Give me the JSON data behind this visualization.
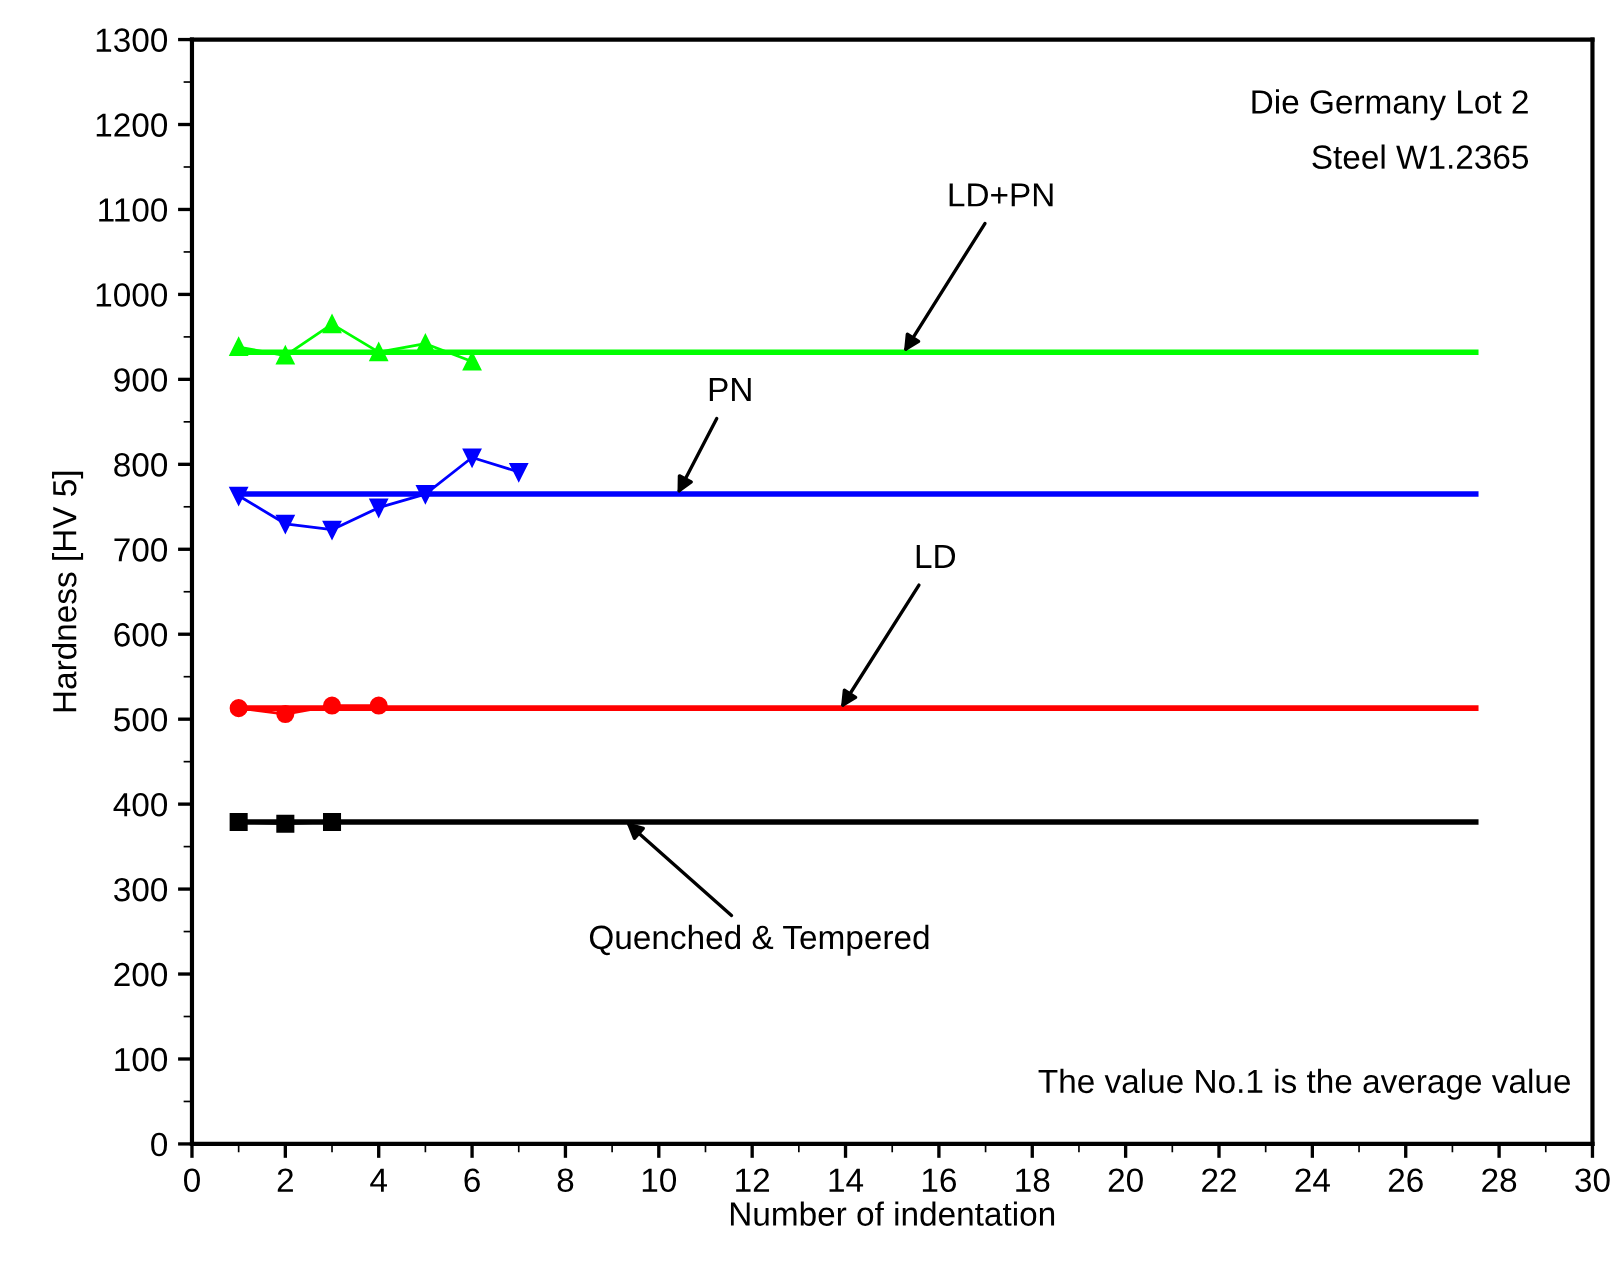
{
  "chart_data": {
    "type": "line",
    "xlabel": "Number of indentation",
    "ylabel": "Hardness [HV 5]",
    "xlim": [
      0,
      30
    ],
    "xticks": [
      0,
      2,
      4,
      6,
      8,
      10,
      12,
      14,
      16,
      18,
      20,
      22,
      24,
      26,
      28,
      30
    ],
    "ylim": [
      0,
      1300
    ],
    "yticks": [
      0,
      100,
      200,
      300,
      400,
      500,
      600,
      700,
      800,
      900,
      1000,
      1100,
      1200,
      1300
    ],
    "line_style": "solid",
    "series": [
      {
        "color": "#00ff00",
        "marker": "triangle",
        "x": [
          1,
          2,
          3,
          4,
          5,
          6
        ],
        "values": [
          938,
          928,
          965,
          932,
          942,
          921
        ]
      },
      {
        "color": "#0000ff",
        "marker": "triangle_down",
        "x": [
          1,
          2,
          3,
          4,
          5,
          6,
          7
        ],
        "values": [
          763,
          730,
          723,
          749,
          765,
          808,
          791
        ]
      },
      {
        "color": "#ff0000",
        "marker": "circle",
        "x": [
          1,
          2,
          3,
          4
        ],
        "values": [
          513,
          506,
          516,
          516
        ]
      },
      {
        "color": "#000000",
        "marker": "square",
        "x": [
          1,
          2,
          3
        ],
        "values": [
          379,
          377,
          379
        ]
      },
      {
        "color": "#00ff00",
        "marker": "none",
        "x": [
          1,
          27.5
        ],
        "values": [
          932,
          932
        ]
      },
      {
        "color": "#0000ff",
        "marker": "none",
        "x": [
          1,
          27.5
        ],
        "values": [
          765,
          765
        ]
      },
      {
        "color": "#ff0000",
        "marker": "none",
        "x": [
          1,
          27.5
        ],
        "values": [
          513,
          513
        ]
      },
      {
        "color": "#000000",
        "marker": "none",
        "x": [
          1,
          27.5
        ],
        "values": [
          379,
          379
        ]
      }
    ],
    "annotations": [
      {
        "text": "LD+PN",
        "x": 15.25,
        "y": 932
      },
      {
        "text": "PN",
        "x": 10.4,
        "y": 765
      },
      {
        "text": "LD",
        "x": 13.9,
        "y": 513
      },
      {
        "text": "Quenched & Tempered",
        "x": 9.3,
        "y": 379
      },
      "Die Germany Lot 2",
      "Steel W1.2365",
      "The value No.1 is the average value"
    ]
  }
}
